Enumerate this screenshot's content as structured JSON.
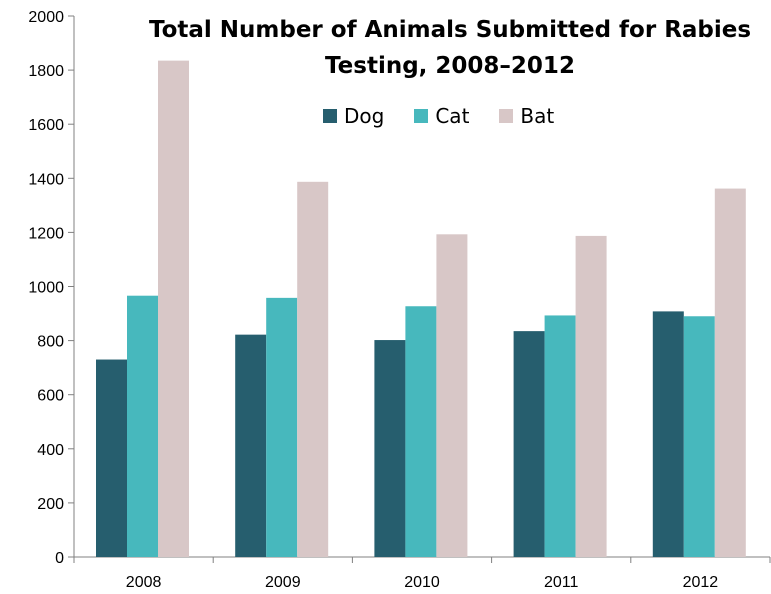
{
  "chart_data": {
    "type": "bar",
    "title_lines": [
      "Total Number of Animals Submitted for Rabies",
      "Testing, 2008–2012"
    ],
    "categories": [
      "2008",
      "2009",
      "2010",
      "2011",
      "2012"
    ],
    "series": [
      {
        "name": "Dog",
        "color": "#265e6e",
        "values": [
          730,
          822,
          802,
          835,
          908
        ]
      },
      {
        "name": "Cat",
        "color": "#47b8bd",
        "values": [
          966,
          958,
          927,
          893,
          890
        ]
      },
      {
        "name": "Bat",
        "color": "#d8c7c7",
        "values": [
          1835,
          1387,
          1193,
          1187,
          1362
        ]
      }
    ],
    "yticks": [
      "0",
      "200",
      "400",
      "600",
      "800",
      "1000",
      "1200",
      "1400",
      "1600",
      "1800",
      "2000"
    ],
    "ylim": [
      0,
      2000
    ],
    "grid": false,
    "legend_position": "top"
  }
}
